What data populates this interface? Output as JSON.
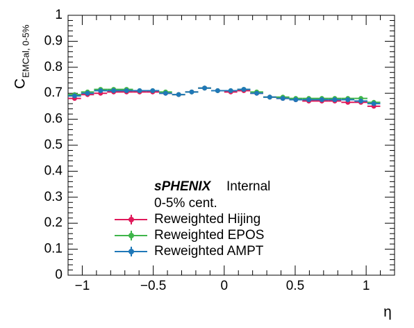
{
  "chart_data": {
    "type": "errorbar",
    "ylabel": "C",
    "ylabel_sub": "EMCal, 0-5%",
    "xlabel": "η",
    "annotations": [
      "sPHENIX",
      "Internal",
      "0-5% cent."
    ],
    "x": [
      -1.054,
      -0.963,
      -0.871,
      -0.779,
      -0.688,
      -0.596,
      -0.504,
      -0.413,
      -0.321,
      -0.229,
      -0.138,
      -0.046,
      0.046,
      0.138,
      0.229,
      0.321,
      0.413,
      0.504,
      0.596,
      0.688,
      0.779,
      0.871,
      0.963,
      1.054
    ],
    "series": [
      {
        "name": "Reweighted Hijing",
        "color": "#e0195a",
        "values": [
          0.68,
          0.695,
          0.7,
          0.705,
          0.705,
          0.705,
          0.705,
          0.7,
          0.695,
          0.705,
          0.72,
          0.71,
          0.705,
          0.71,
          0.7,
          0.685,
          0.68,
          0.675,
          0.67,
          0.67,
          0.67,
          0.665,
          0.665,
          0.65
        ]
      },
      {
        "name": "Reweighted EPOS",
        "color": "#3fb54a",
        "values": [
          0.695,
          0.705,
          0.715,
          0.715,
          0.715,
          0.71,
          0.71,
          0.705,
          0.695,
          0.705,
          0.72,
          0.71,
          0.71,
          0.715,
          0.705,
          0.685,
          0.685,
          0.68,
          0.68,
          0.68,
          0.68,
          0.68,
          0.68,
          0.665
        ]
      },
      {
        "name": "Reweighted AMPT",
        "color": "#1f78b8",
        "values": [
          0.69,
          0.7,
          0.71,
          0.71,
          0.71,
          0.71,
          0.71,
          0.7,
          0.695,
          0.705,
          0.72,
          0.71,
          0.71,
          0.715,
          0.7,
          0.685,
          0.68,
          0.675,
          0.675,
          0.675,
          0.675,
          0.675,
          0.67,
          0.66
        ]
      }
    ],
    "xlim": [
      -1.1,
      1.2
    ],
    "ylim": [
      0,
      1
    ],
    "xticks": [
      {
        "value": -1,
        "label": "−1"
      },
      {
        "value": -0.5,
        "label": "−0.5"
      },
      0,
      0.5,
      1
    ],
    "yticks": [
      0,
      0.1,
      0.2,
      0.3,
      0.4,
      0.5,
      0.6,
      0.7,
      0.8,
      0.9,
      1
    ]
  }
}
